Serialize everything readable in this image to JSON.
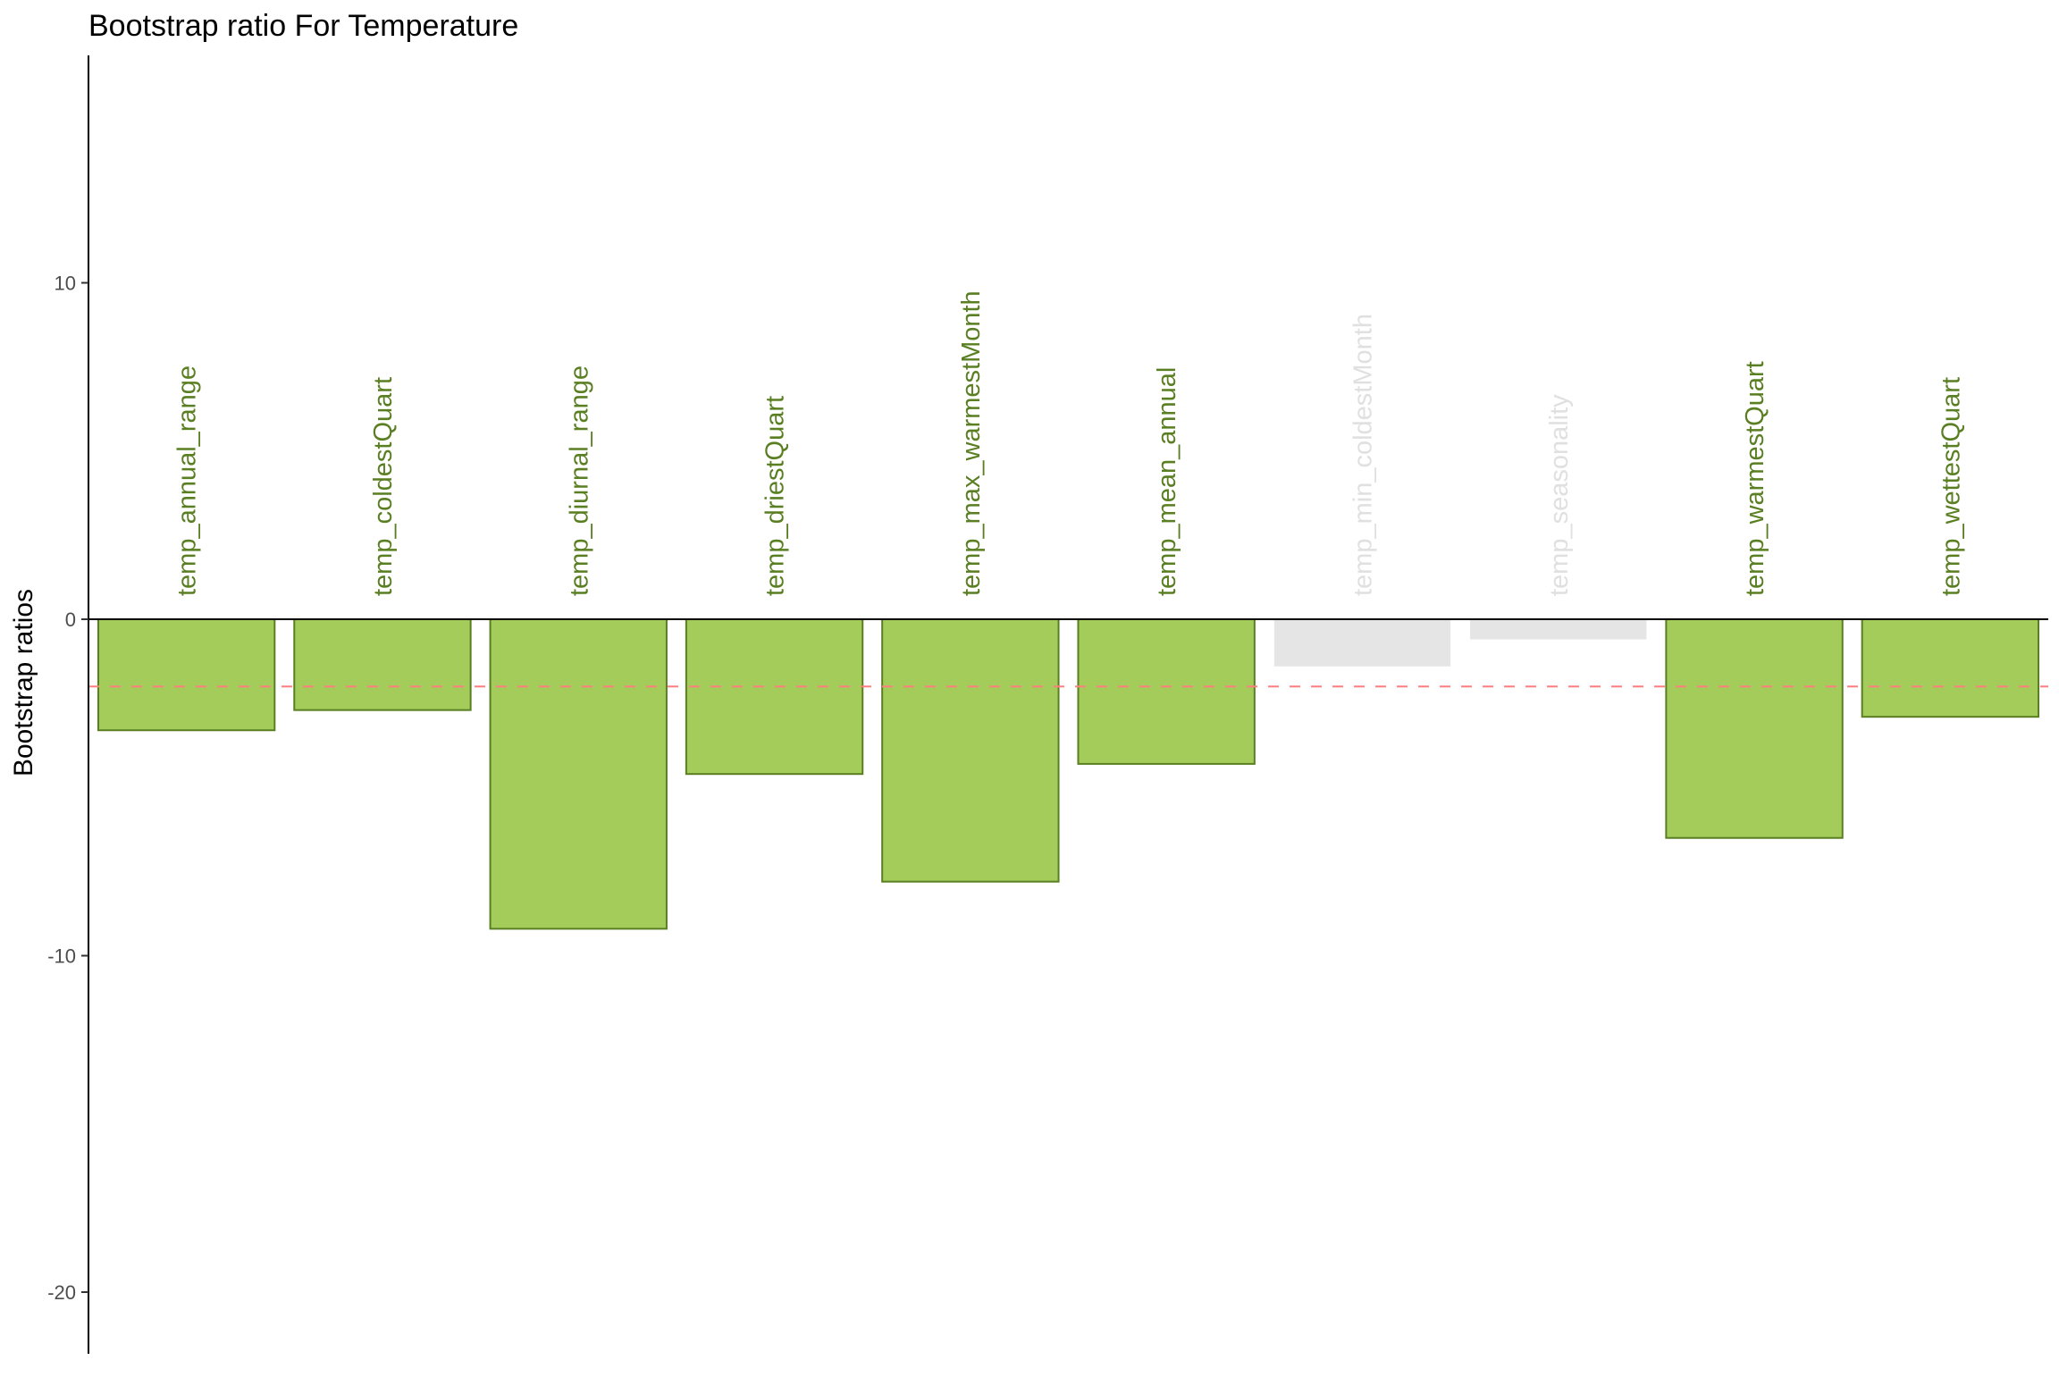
{
  "chart_data": {
    "type": "bar",
    "title": "Bootstrap ratio For Temperature",
    "xlabel": "",
    "ylabel": "Bootstrap ratios",
    "ylim": [
      -22,
      16.8
    ],
    "yticks": [
      10,
      0,
      -10,
      -20
    ],
    "ytick_labels": [
      "10",
      "0",
      "-10",
      "-20"
    ],
    "threshold": -2,
    "grid": false,
    "legend": "none",
    "categories": [
      "temp_annual_range",
      "temp_coldestQuart",
      "temp_diurnal_range",
      "temp_driestQuart",
      "temp_max_warmestMonth",
      "temp_mean_annual",
      "temp_min_coldestMonth",
      "temp_seasonality",
      "temp_warmestQuart",
      "temp_wettestQuart"
    ],
    "values": [
      -3.3,
      -2.7,
      -9.2,
      -4.6,
      -7.8,
      -4.3,
      -1.4,
      -0.6,
      -6.5,
      -2.9
    ],
    "significant": [
      true,
      true,
      true,
      true,
      true,
      true,
      false,
      false,
      true,
      true
    ],
    "colors": {
      "significant_fill": "#a3cc5b",
      "significant_border": "#5a7f22",
      "significant_label": "#5a7f22",
      "nonsignificant_fill": "#e5e5e5",
      "nonsignificant_label": "#e0e0e0",
      "threshold_line": "#ff7f7f",
      "axis": "#000000"
    }
  }
}
